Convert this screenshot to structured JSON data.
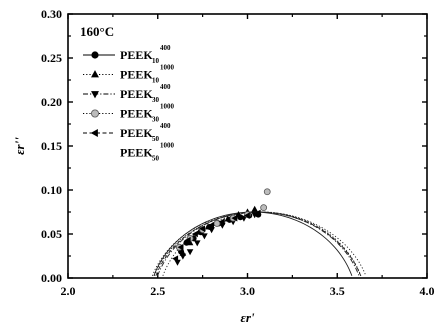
{
  "chart_data": {
    "type": "scatter",
    "annotation": "160°C",
    "xlabel": "εr'",
    "ylabel": "εr''",
    "xlim": [
      2.0,
      4.0
    ],
    "ylim": [
      0.0,
      0.3
    ],
    "xticks": [
      "2.0",
      "2.5",
      "3.0",
      "3.5",
      "4.0"
    ],
    "yticks": [
      "0.00",
      "0.05",
      "0.10",
      "0.15",
      "0.20",
      "0.25",
      "0.30"
    ],
    "legend_position": "top-left",
    "series": [
      {
        "label_base": "PEEK",
        "label_sub": "10",
        "label_sup": "400",
        "marker": "circle",
        "line_style": "solid",
        "arc": {
          "center": 3.03,
          "radius": 0.58,
          "depression": -0.03
        },
        "points": [
          [
            2.63,
            0.03
          ],
          [
            2.66,
            0.04
          ],
          [
            2.7,
            0.045
          ],
          [
            2.74,
            0.052
          ],
          [
            2.79,
            0.058
          ],
          [
            2.84,
            0.062
          ],
          [
            2.9,
            0.066
          ],
          [
            2.96,
            0.069
          ],
          [
            3.01,
            0.071
          ],
          [
            3.06,
            0.072
          ]
        ]
      },
      {
        "label_base": "PEEK",
        "label_sub": "10",
        "label_sup": "1000",
        "marker": "triangle-up",
        "line_style": "dotted",
        "arc": {
          "center": 3.05,
          "radius": 0.61,
          "depression": -0.03
        },
        "points": [
          [
            2.64,
            0.028
          ],
          [
            2.68,
            0.04
          ],
          [
            2.73,
            0.052
          ],
          [
            2.78,
            0.058
          ],
          [
            2.83,
            0.062
          ],
          [
            2.89,
            0.067
          ],
          [
            2.95,
            0.072
          ],
          [
            3.0,
            0.075
          ],
          [
            3.04,
            0.078
          ]
        ]
      },
      {
        "label_base": "PEEK",
        "label_sub": "30",
        "label_sup": "400",
        "marker": "triangle-down",
        "line_style": "dash-dot",
        "arc": {
          "center": 3.06,
          "radius": 0.59,
          "depression": -0.03
        },
        "points": [
          [
            2.61,
            0.018
          ],
          [
            2.64,
            0.025
          ],
          [
            2.68,
            0.03
          ],
          [
            2.72,
            0.04
          ],
          [
            2.76,
            0.048
          ],
          [
            2.8,
            0.055
          ],
          [
            2.86,
            0.06
          ],
          [
            2.92,
            0.064
          ],
          [
            2.98,
            0.068
          ],
          [
            3.04,
            0.072
          ]
        ]
      },
      {
        "label_base": "PEEK",
        "label_sub": "30",
        "label_sup": "1000",
        "marker": "circle-open",
        "line_style": "dotted",
        "arc": {
          "center": 3.07,
          "radius": 0.62,
          "depression": -0.03
        },
        "points": [
          [
            2.62,
            0.035
          ],
          [
            2.68,
            0.045
          ],
          [
            2.75,
            0.055
          ],
          [
            2.83,
            0.062
          ],
          [
            2.92,
            0.068
          ],
          [
            3.0,
            0.072
          ],
          [
            3.09,
            0.08
          ],
          [
            3.11,
            0.098
          ]
        ]
      },
      {
        "label_base": "PEEK",
        "label_sub": "50",
        "label_sup": "400",
        "marker": "triangle-left",
        "line_style": "dash",
        "arc": {
          "center": 3.06,
          "radius": 0.6,
          "depression": -0.03
        },
        "points": [
          [
            2.6,
            0.022
          ],
          [
            2.63,
            0.035
          ],
          [
            2.67,
            0.043
          ],
          [
            2.71,
            0.05
          ],
          [
            2.75,
            0.056
          ],
          [
            2.8,
            0.06
          ],
          [
            2.86,
            0.064
          ],
          [
            2.93,
            0.068
          ],
          [
            3.0,
            0.071
          ],
          [
            3.06,
            0.074
          ]
        ]
      },
      {
        "label_base": "PEEK",
        "label_sub": "50",
        "label_sup": "1000",
        "marker": "none",
        "line_style": "dotted",
        "arc": {
          "center": 3.08,
          "radius": 0.58,
          "depression": -0.03
        },
        "points": []
      }
    ]
  }
}
